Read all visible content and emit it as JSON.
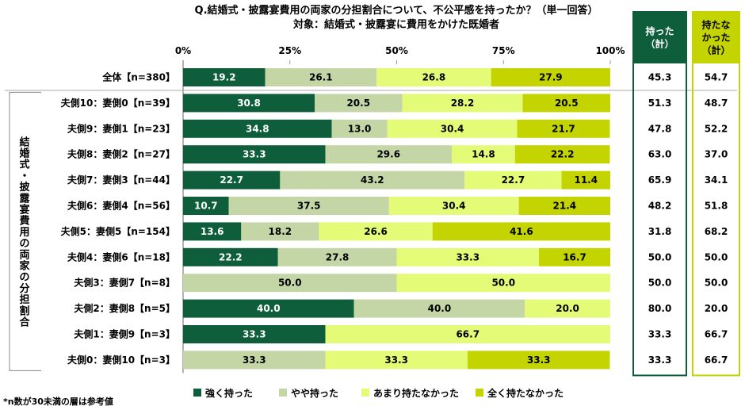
{
  "chart_data": {
    "type": "bar",
    "orientation": "horizontal-stacked-100",
    "title": "Q.結婚式・披露宴費用の両家の分担割合について、不公平感を持ったか？（単一回答）",
    "subtitle": "対象：結婚式・披露宴に費用をかけた既婚者",
    "side_label": "結婚式・披露宴費用の両家の分担割合",
    "xlim": [
      0,
      100
    ],
    "ticks": [
      "0%",
      "25%",
      "50%",
      "75%",
      "100%"
    ],
    "tick_values": [
      0,
      25,
      50,
      75,
      100
    ],
    "categories": [
      "全体【n=380】",
      "夫側10：妻側0【n=39】",
      "夫側9：妻側1【n=23】",
      "夫側8：妻側2【n=27】",
      "夫側7：妻側3【n=44】",
      "夫側6：妻側4【n=56】",
      "夫側5：妻側5【n=154】",
      "夫側4：妻側6【n=18】",
      "夫側3：妻側7【n=8】",
      "夫側2：妻側8【n=5】",
      "夫側1：妻側9【n=3】",
      "夫側0：妻側10【n=3】"
    ],
    "series": [
      {
        "name": "強く持った",
        "color": "#0e5e3c",
        "label_color": "#ffffff",
        "values": [
          19.2,
          30.8,
          34.8,
          33.3,
          22.7,
          10.7,
          13.6,
          22.2,
          0,
          40.0,
          33.3,
          0
        ]
      },
      {
        "name": "やや持った",
        "color": "#c5d6a6",
        "label_color": "#000000",
        "values": [
          26.1,
          20.5,
          13.0,
          29.6,
          43.2,
          37.5,
          18.2,
          27.8,
          50.0,
          40.0,
          0,
          33.3
        ]
      },
      {
        "name": "あまり持たなかった",
        "color": "#e4fb78",
        "label_color": "#000000",
        "values": [
          26.8,
          28.2,
          30.4,
          14.8,
          22.7,
          30.4,
          26.6,
          33.3,
          50.0,
          20.0,
          66.7,
          33.3
        ]
      },
      {
        "name": "全く持たなかった",
        "color": "#c3d400",
        "label_color": "#000000",
        "values": [
          27.9,
          20.5,
          21.7,
          22.2,
          11.4,
          21.4,
          41.6,
          16.7,
          0,
          0,
          0,
          33.3
        ]
      }
    ],
    "summary_columns": [
      {
        "header_lines": [
          "持った",
          "（計）"
        ],
        "header_bg": "#0e5e3c",
        "header_color": "#ffffff",
        "border_color": "#0e5e3c",
        "values": [
          "45.3",
          "51.3",
          "47.8",
          "63.0",
          "65.9",
          "48.2",
          "31.8",
          "50.0",
          "50.0",
          "80.0",
          "33.3",
          "33.3"
        ]
      },
      {
        "header_lines": [
          "持たな",
          "かった",
          "（計）"
        ],
        "header_bg": "#c3d400",
        "header_color": "#000000",
        "border_color": "#c3d400",
        "values": [
          "54.7",
          "48.7",
          "52.2",
          "37.0",
          "34.1",
          "51.8",
          "68.2",
          "50.0",
          "50.0",
          "20.0",
          "66.7",
          "66.7"
        ]
      }
    ],
    "legend_position": "bottom",
    "footnote": "*n数が30未満の層は参考値"
  }
}
